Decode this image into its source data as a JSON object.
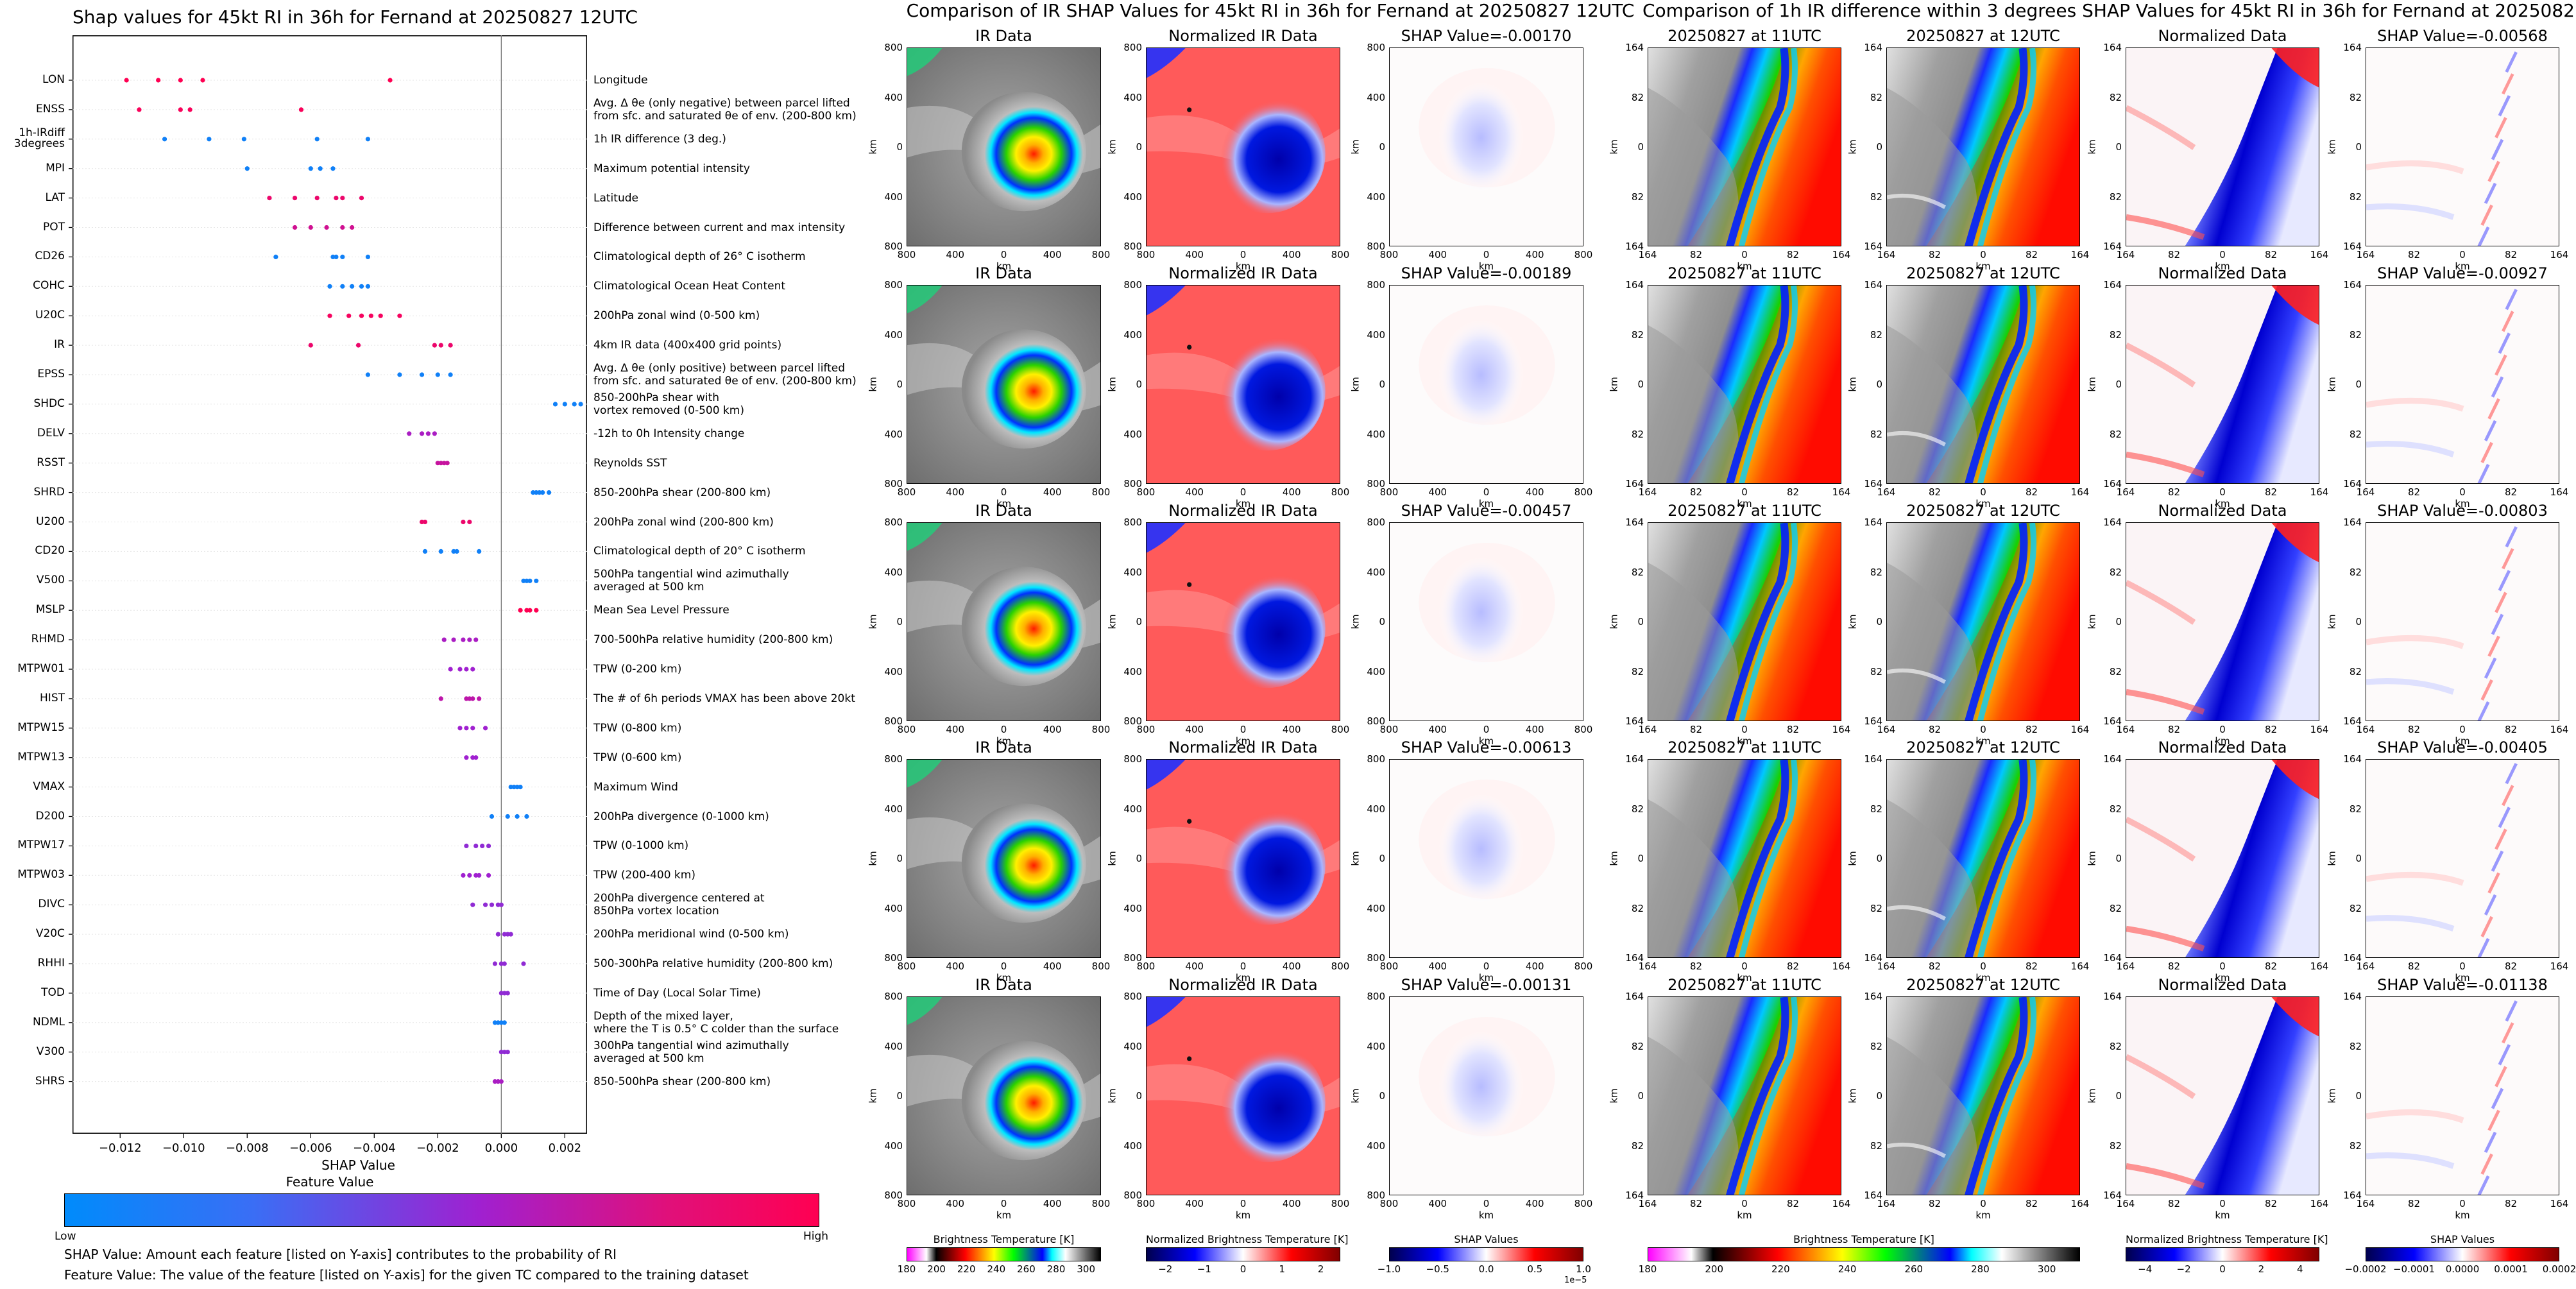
{
  "chart_data": [
    {
      "type": "scatter",
      "title": "Shap values for 45kt RI in 36h for Fernand at 20250827 12UTC",
      "xlabel": "SHAP Value",
      "xlim": [
        -0.0135,
        0.0027
      ],
      "xticks": [
        -0.012,
        -0.01,
        -0.008,
        -0.006,
        -0.004,
        -0.002,
        0.0,
        0.002
      ],
      "xtick_labels": [
        "−0.012",
        "−0.010",
        "−0.008",
        "−0.006",
        "−0.004",
        "−0.002",
        "0.000",
        "0.002"
      ],
      "colorbar_label": "Feature Value",
      "colorbar_low": "Low",
      "colorbar_high": "High",
      "features": [
        {
          "name": "LON",
          "desc": [
            "Longitude"
          ],
          "shap": [
            -0.0118,
            -0.0108,
            -0.0101,
            -0.0094,
            -0.0035
          ],
          "fv": 1.0
        },
        {
          "name": "ENSS",
          "desc": [
            "Avg. Δ θe (only negative) between parcel lifted",
            "from sfc. and saturated θe of env. (200-800 km)"
          ],
          "shap": [
            -0.0114,
            -0.0101,
            -0.0098,
            -0.0063
          ],
          "fv": 0.97
        },
        {
          "name": "1h-IRdiff\n3degrees",
          "desc": [
            "1h IR difference (3 deg.)"
          ],
          "shap": [
            -0.0106,
            -0.0092,
            -0.0081,
            -0.0058,
            -0.0042
          ],
          "fv": 0.05
        },
        {
          "name": "MPI",
          "desc": [
            "Maximum potential intensity"
          ],
          "shap": [
            -0.008,
            -0.006,
            -0.0057,
            -0.0053
          ],
          "fv": 0.05
        },
        {
          "name": "LAT",
          "desc": [
            "Latitude"
          ],
          "shap": [
            -0.0073,
            -0.0065,
            -0.0058,
            -0.0052,
            -0.005,
            -0.0044
          ],
          "fv": 0.9
        },
        {
          "name": "POT",
          "desc": [
            "Difference between current and max intensity"
          ],
          "shap": [
            -0.0065,
            -0.006,
            -0.0055,
            -0.005,
            -0.0047
          ],
          "fv": 0.75
        },
        {
          "name": "CD26",
          "desc": [
            "Climatological depth of 26° C isotherm"
          ],
          "shap": [
            -0.0071,
            -0.0053,
            -0.0052,
            -0.005,
            -0.0042
          ],
          "fv": 0.05
        },
        {
          "name": "COHC",
          "desc": [
            "Climatological Ocean Heat Content"
          ],
          "shap": [
            -0.0054,
            -0.005,
            -0.0047,
            -0.0044,
            -0.0042
          ],
          "fv": 0.05
        },
        {
          "name": "U20C",
          "desc": [
            "200hPa zonal wind (0-500 km)"
          ],
          "shap": [
            -0.0054,
            -0.0048,
            -0.0044,
            -0.0041,
            -0.0038,
            -0.0032
          ],
          "fv": 0.95
        },
        {
          "name": "IR",
          "desc": [
            "4km IR data (400x400 grid points)"
          ],
          "shap": [
            -0.006,
            -0.0045,
            -0.0021,
            -0.0019,
            -0.0016
          ],
          "fv": 0.9
        },
        {
          "name": "EPSS",
          "desc": [
            "Avg. Δ θe (only positive) between parcel lifted",
            "from sfc. and saturated θe of env. (200-800 km)"
          ],
          "shap": [
            -0.0042,
            -0.0032,
            -0.0025,
            -0.002,
            -0.0016
          ],
          "fv": 0.05
        },
        {
          "name": "SHDC",
          "desc": [
            "850-200hPa shear with",
            "vortex removed (0-500 km)"
          ],
          "shap": [
            0.0017,
            0.002,
            0.0023,
            0.0025
          ],
          "fv": 0.05
        },
        {
          "name": "DELV",
          "desc": [
            "-12h to 0h Intensity change"
          ],
          "shap": [
            -0.0029,
            -0.0025,
            -0.0023,
            -0.0021
          ],
          "fv": 0.55
        },
        {
          "name": "RSST",
          "desc": [
            "Reynolds SST"
          ],
          "shap": [
            -0.002,
            -0.0019,
            -0.0018,
            -0.0017
          ],
          "fv": 0.7
        },
        {
          "name": "SHRD",
          "desc": [
            "850-200hPa shear (200-800 km)"
          ],
          "shap": [
            0.001,
            0.0011,
            0.0012,
            0.0013,
            0.0015
          ],
          "fv": 0.05
        },
        {
          "name": "U200",
          "desc": [
            "200hPa zonal wind (200-800 km)"
          ],
          "shap": [
            -0.0025,
            -0.0024,
            -0.0012,
            -0.001
          ],
          "fv": 0.9
        },
        {
          "name": "CD20",
          "desc": [
            "Climatological depth of 20° C isotherm"
          ],
          "shap": [
            -0.0024,
            -0.0019,
            -0.0015,
            -0.0014,
            -0.0007
          ],
          "fv": 0.05
        },
        {
          "name": "V500",
          "desc": [
            "500hPa tangential wind azimuthally",
            "averaged at 500 km"
          ],
          "shap": [
            0.0007,
            0.0008,
            0.0009,
            0.0011
          ],
          "fv": 0.05
        },
        {
          "name": "MSLP",
          "desc": [
            "Mean Sea Level Pressure"
          ],
          "shap": [
            0.0006,
            0.0008,
            0.0009,
            0.0011
          ],
          "fv": 1.0
        },
        {
          "name": "RHMD",
          "desc": [
            "700-500hPa relative humidity (200-800 km)"
          ],
          "shap": [
            -0.0018,
            -0.0015,
            -0.0012,
            -0.001,
            -0.0008
          ],
          "fv": 0.55
        },
        {
          "name": "MTPW01",
          "desc": [
            "TPW (0-200 km)"
          ],
          "shap": [
            -0.0016,
            -0.0013,
            -0.0011,
            -0.0009
          ],
          "fv": 0.5
        },
        {
          "name": "HIST",
          "desc": [
            "The # of 6h periods VMAX has been above 20kt"
          ],
          "shap": [
            -0.0019,
            -0.0011,
            -0.001,
            -0.0009,
            -0.0007
          ],
          "fv": 0.65
        },
        {
          "name": "MTPW15",
          "desc": [
            "TPW (0-800 km)"
          ],
          "shap": [
            -0.0013,
            -0.0011,
            -0.0009,
            -0.0005
          ],
          "fv": 0.5
        },
        {
          "name": "MTPW13",
          "desc": [
            "TPW (0-600 km)"
          ],
          "shap": [
            -0.0011,
            -0.0009,
            -0.0008
          ],
          "fv": 0.5
        },
        {
          "name": "VMAX",
          "desc": [
            "Maximum Wind"
          ],
          "shap": [
            0.0003,
            0.0004,
            0.0005,
            0.0006
          ],
          "fv": 0.05
        },
        {
          "name": "D200",
          "desc": [
            "200hPa divergence (0-1000 km)"
          ],
          "shap": [
            -0.0003,
            0.0002,
            0.0005,
            0.0008
          ],
          "fv": 0.05
        },
        {
          "name": "MTPW17",
          "desc": [
            "TPW (0-1000 km)"
          ],
          "shap": [
            -0.0011,
            -0.0008,
            -0.0006,
            -0.0004
          ],
          "fv": 0.45
        },
        {
          "name": "MTPW03",
          "desc": [
            "TPW (200-400 km)"
          ],
          "shap": [
            -0.0012,
            -0.001,
            -0.0008,
            -0.0007,
            -0.0004
          ],
          "fv": 0.5
        },
        {
          "name": "DIVC",
          "desc": [
            "200hPa divergence centered at",
            "850hPa vortex location"
          ],
          "shap": [
            -0.0009,
            -0.0005,
            -0.0003,
            -0.0001,
            0.0
          ],
          "fv": 0.45
        },
        {
          "name": "V20C",
          "desc": [
            "200hPa meridional wind (0-500 km)"
          ],
          "shap": [
            -0.0001,
            0.0001,
            0.0002,
            0.0003
          ],
          "fv": 0.45
        },
        {
          "name": "RHHI",
          "desc": [
            "500-300hPa relative humidity (200-800 km)"
          ],
          "shap": [
            -0.0002,
            0.0,
            0.0001,
            0.0007
          ],
          "fv": 0.45
        },
        {
          "name": "TOD",
          "desc": [
            "Time of Day (Local Solar Time)"
          ],
          "shap": [
            0.0,
            0.0001,
            0.0002
          ],
          "fv": 0.45
        },
        {
          "name": "NDML",
          "desc": [
            "Depth of the mixed layer,",
            "where the T is 0.5° C colder than the surface"
          ],
          "shap": [
            -0.0002,
            -0.0001,
            0.0,
            0.0001
          ],
          "fv": 0.05
        },
        {
          "name": "V300",
          "desc": [
            "300hPa tangential wind azimuthally",
            "averaged at 500 km"
          ],
          "shap": [
            0.0,
            0.0001,
            0.0002
          ],
          "fv": 0.45
        },
        {
          "name": "SHRS",
          "desc": [
            "850-500hPa shear (200-800 km)"
          ],
          "shap": [
            -0.0002,
            -0.0001,
            0.0
          ],
          "fv": 0.55
        }
      ]
    },
    {
      "type": "heatmap",
      "title": "Comparison of IR SHAP Values for 45kt RI in 36h for Fernand at 20250827 12UTC",
      "column_titles": [
        "IR Data",
        "Normalized IR Data"
      ],
      "shap_values": [
        "-0.00170",
        "-0.00189",
        "-0.00457",
        "-0.00613",
        "-0.00131"
      ],
      "shap_prefix": "SHAP Value=",
      "axis_unit": "km",
      "ticks": [
        "800",
        "400",
        "0",
        "400",
        "800"
      ],
      "colorbars": [
        {
          "label": "Brightness Temperature [K]",
          "ticks": [
            "180",
            "200",
            "220",
            "240",
            "260",
            "280",
            "300"
          ],
          "vmin": 180,
          "vmax": 310
        },
        {
          "label": "Normalized Brightness Temperature [K]",
          "ticks": [
            "−2",
            "−1",
            "0",
            "1",
            "2"
          ],
          "vmin": -2.5,
          "vmax": 2.5
        },
        {
          "label": "SHAP Values",
          "ticks": [
            "−1.0",
            "−0.5",
            "0.0",
            "0.5",
            "1.0"
          ],
          "vmin": -1.0,
          "vmax": 1.0,
          "offset": "1e−5"
        }
      ]
    },
    {
      "type": "heatmap",
      "title": "Comparison of 1h IR difference within 3 degrees SHAP Values for 45kt RI in 36h for Fernand at 20250827 12UTC",
      "column_titles": [
        "20250827 at 11UTC",
        "20250827 at 12UTC",
        "Normalized Data"
      ],
      "shap_values": [
        "-0.00568",
        "-0.00927",
        "-0.00803",
        "-0.00405",
        "-0.01138"
      ],
      "shap_prefix": "SHAP Value=",
      "axis_unit": "km",
      "ticks": [
        "164",
        "82",
        "0",
        "82",
        "164"
      ],
      "colorbars": [
        {
          "label": "Brightness Temperature [K]",
          "ticks": [
            "180",
            "200",
            "220",
            "240",
            "260",
            "280",
            "300"
          ],
          "vmin": 180,
          "vmax": 310
        },
        {
          "label": "Normalized Brightness Temperature [K]",
          "ticks": [
            "−4",
            "−2",
            "0",
            "2",
            "4"
          ],
          "vmin": -5,
          "vmax": 5
        },
        {
          "label": "SHAP Values",
          "ticks": [
            "−0.0002",
            "−0.0001",
            "0.0000",
            "0.0001",
            "0.0002"
          ],
          "vmin": -0.0002,
          "vmax": 0.0002
        }
      ]
    }
  ],
  "notes": [
    "SHAP Value: Amount each feature [listed on Y-axis] contributes to the probability of RI",
    "Feature Value: The value of the feature [listed on Y-axis] for the given TC compared to the training dataset"
  ],
  "colors": {
    "low": "#008bfb",
    "high": "#ff0052",
    "ir_gradient": "#ff00ff,#ffffff,#000000,#ff0000,#ffff00,#00ff00,#0000ff,#00ffff,#ffffff,#000000",
    "seismic_blue": "#00008b",
    "seismic_red": "#8b0000"
  }
}
